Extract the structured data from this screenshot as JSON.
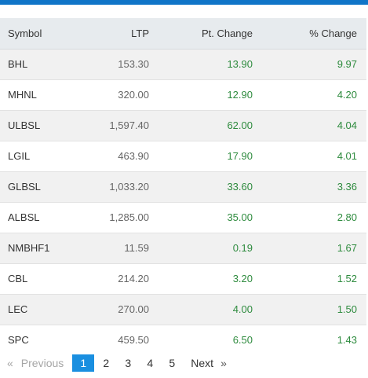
{
  "colors": {
    "top_bar": "#1075c8",
    "header_bg": "#e7ebee",
    "positive": "#2e8b3e",
    "active_page": "#1a8fe0"
  },
  "table": {
    "headers": {
      "symbol": "Symbol",
      "ltp": "LTP",
      "pt_change": "Pt. Change",
      "pct_change": "% Change"
    },
    "rows": [
      {
        "symbol": "BHL",
        "ltp": "153.30",
        "pt_change": "13.90",
        "pct_change": "9.97"
      },
      {
        "symbol": "MHNL",
        "ltp": "320.00",
        "pt_change": "12.90",
        "pct_change": "4.20"
      },
      {
        "symbol": "ULBSL",
        "ltp": "1,597.40",
        "pt_change": "62.00",
        "pct_change": "4.04"
      },
      {
        "symbol": "LGIL",
        "ltp": "463.90",
        "pt_change": "17.90",
        "pct_change": "4.01"
      },
      {
        "symbol": "GLBSL",
        "ltp": "1,033.20",
        "pt_change": "33.60",
        "pct_change": "3.36"
      },
      {
        "symbol": "ALBSL",
        "ltp": "1,285.00",
        "pt_change": "35.00",
        "pct_change": "2.80"
      },
      {
        "symbol": "NMBHF1",
        "ltp": "11.59",
        "pt_change": "0.19",
        "pct_change": "1.67"
      },
      {
        "symbol": "CBL",
        "ltp": "214.20",
        "pt_change": "3.20",
        "pct_change": "1.52"
      },
      {
        "symbol": "LEC",
        "ltp": "270.00",
        "pt_change": "4.00",
        "pct_change": "1.50"
      },
      {
        "symbol": "SPC",
        "ltp": "459.50",
        "pt_change": "6.50",
        "pct_change": "1.43"
      }
    ]
  },
  "pagination": {
    "prev_arrow": "«",
    "prev_label": "Previous",
    "pages": [
      "1",
      "2",
      "3",
      "4",
      "5"
    ],
    "current_page": "1",
    "next_label": "Next",
    "next_arrow": "»"
  }
}
